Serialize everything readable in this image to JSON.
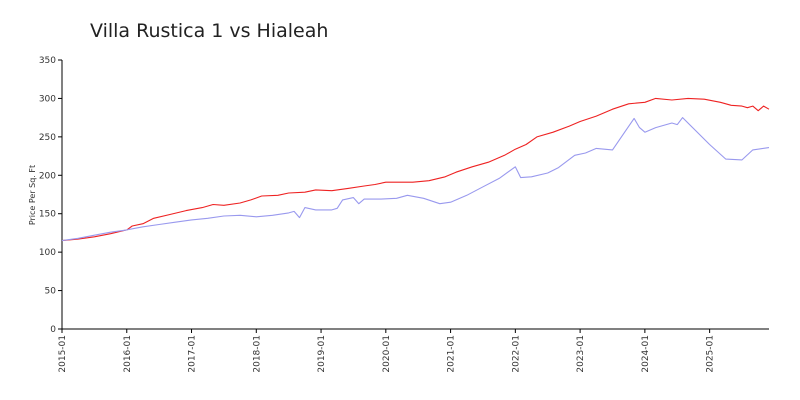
{
  "chart_data": {
    "type": "line",
    "title": "Villa Rustica 1 vs Hialeah",
    "ylabel": "Price Per Sq. Ft",
    "xlabel": "",
    "ylim": [
      0,
      350
    ],
    "xlim": [
      "2015-01",
      "2025-12"
    ],
    "yticks": [
      0,
      50,
      100,
      150,
      200,
      250,
      300,
      350
    ],
    "xticks": [
      "2015-01",
      "2016-01",
      "2017-01",
      "2018-01",
      "2019-01",
      "2020-01",
      "2021-01",
      "2022-01",
      "2023-01",
      "2024-01",
      "2025-01"
    ],
    "grid": false,
    "legend": "none",
    "series": [
      {
        "color": "#ee2222",
        "points": [
          [
            "2015-01",
            115
          ],
          [
            "2015-04",
            117
          ],
          [
            "2015-07",
            120
          ],
          [
            "2015-10",
            124
          ],
          [
            "2016-01",
            129
          ],
          [
            "2016-02",
            134
          ],
          [
            "2016-04",
            137
          ],
          [
            "2016-06",
            144
          ],
          [
            "2016-09",
            149
          ],
          [
            "2016-12",
            154
          ],
          [
            "2017-03",
            158
          ],
          [
            "2017-05",
            162
          ],
          [
            "2017-07",
            161
          ],
          [
            "2017-10",
            164
          ],
          [
            "2017-12",
            168
          ],
          [
            "2018-02",
            173
          ],
          [
            "2018-05",
            174
          ],
          [
            "2018-07",
            177
          ],
          [
            "2018-10",
            178
          ],
          [
            "2018-12",
            181
          ],
          [
            "2019-03",
            180
          ],
          [
            "2019-06",
            183
          ],
          [
            "2019-09",
            186
          ],
          [
            "2019-11",
            188
          ],
          [
            "2020-01",
            191
          ],
          [
            "2020-06",
            191
          ],
          [
            "2020-09",
            193
          ],
          [
            "2020-12",
            198
          ],
          [
            "2021-02",
            204
          ],
          [
            "2021-05",
            211
          ],
          [
            "2021-08",
            217
          ],
          [
            "2021-11",
            226
          ],
          [
            "2022-01",
            234
          ],
          [
            "2022-03",
            240
          ],
          [
            "2022-05",
            250
          ],
          [
            "2022-08",
            256
          ],
          [
            "2022-11",
            264
          ],
          [
            "2023-01",
            270
          ],
          [
            "2023-04",
            277
          ],
          [
            "2023-07",
            286
          ],
          [
            "2023-10",
            293
          ],
          [
            "2024-01",
            295
          ],
          [
            "2024-03",
            300
          ],
          [
            "2024-06",
            298
          ],
          [
            "2024-09",
            300
          ],
          [
            "2024-12",
            299
          ],
          [
            "2025-03",
            295
          ],
          [
            "2025-05",
            291
          ],
          [
            "2025-07",
            290
          ],
          [
            "2025-08",
            288
          ],
          [
            "2025-09",
            290
          ],
          [
            "2025-10",
            284
          ],
          [
            "2025-11",
            290
          ],
          [
            "2025-12",
            286
          ]
        ]
      },
      {
        "color": "#9999ee",
        "points": [
          [
            "2015-01",
            115
          ],
          [
            "2015-04",
            118
          ],
          [
            "2015-07",
            122
          ],
          [
            "2015-10",
            126
          ],
          [
            "2016-01",
            129
          ],
          [
            "2016-04",
            133
          ],
          [
            "2016-07",
            136
          ],
          [
            "2016-10",
            139
          ],
          [
            "2017-01",
            142
          ],
          [
            "2017-04",
            144
          ],
          [
            "2017-07",
            147
          ],
          [
            "2017-10",
            148
          ],
          [
            "2018-01",
            146
          ],
          [
            "2018-04",
            148
          ],
          [
            "2018-07",
            151
          ],
          [
            "2018-08",
            153
          ],
          [
            "2018-09",
            145
          ],
          [
            "2018-10",
            158
          ],
          [
            "2018-12",
            155
          ],
          [
            "2019-03",
            155
          ],
          [
            "2019-04",
            157
          ],
          [
            "2019-05",
            168
          ],
          [
            "2019-07",
            171
          ],
          [
            "2019-08",
            163
          ],
          [
            "2019-09",
            169
          ],
          [
            "2019-12",
            169
          ],
          [
            "2020-03",
            170
          ],
          [
            "2020-05",
            174
          ],
          [
            "2020-08",
            170
          ],
          [
            "2020-11",
            163
          ],
          [
            "2021-01",
            165
          ],
          [
            "2021-04",
            174
          ],
          [
            "2021-07",
            185
          ],
          [
            "2021-10",
            196
          ],
          [
            "2022-01",
            211
          ],
          [
            "2022-02",
            197
          ],
          [
            "2022-04",
            198
          ],
          [
            "2022-07",
            203
          ],
          [
            "2022-09",
            210
          ],
          [
            "2022-12",
            226
          ],
          [
            "2023-02",
            229
          ],
          [
            "2023-04",
            235
          ],
          [
            "2023-07",
            233
          ],
          [
            "2023-11",
            274
          ],
          [
            "2023-12",
            262
          ],
          [
            "2024-01",
            256
          ],
          [
            "2024-03",
            262
          ],
          [
            "2024-06",
            268
          ],
          [
            "2024-07",
            266
          ],
          [
            "2024-08",
            275
          ],
          [
            "2024-10",
            261
          ],
          [
            "2025-01",
            240
          ],
          [
            "2025-04",
            221
          ],
          [
            "2025-07",
            220
          ],
          [
            "2025-09",
            233
          ],
          [
            "2025-12",
            236
          ]
        ]
      }
    ]
  }
}
